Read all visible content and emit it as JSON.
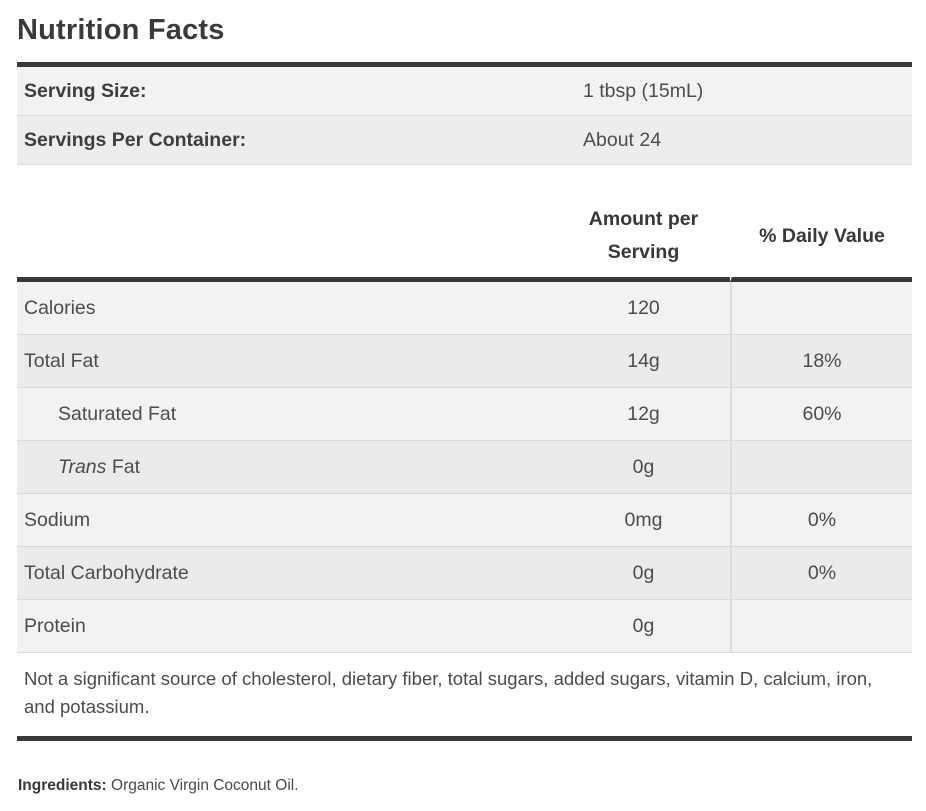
{
  "title": "Nutrition Facts",
  "serving_info": {
    "rows": [
      {
        "label": "Serving Size:",
        "value": "1 tbsp (15mL)"
      },
      {
        "label": "Servings Per Container:",
        "value": "About 24"
      }
    ]
  },
  "nutrition_table": {
    "columns": {
      "amount": "Amount per Serving",
      "daily_value": "% Daily Value"
    },
    "rows": [
      {
        "label": "Calories",
        "amount": "120",
        "daily_value": ""
      },
      {
        "label": "Total Fat",
        "amount": "14g",
        "daily_value": "18%"
      },
      {
        "label": "Saturated Fat",
        "amount": "12g",
        "daily_value": "60%"
      },
      {
        "label_italic": "Trans",
        "label_rest": " Fat",
        "amount": "0g",
        "daily_value": ""
      },
      {
        "label": "Sodium",
        "amount": "0mg",
        "daily_value": "0%"
      },
      {
        "label": "Total Carbohydrate",
        "amount": "0g",
        "daily_value": "0%"
      },
      {
        "label": "Protein",
        "amount": "0g",
        "daily_value": ""
      }
    ],
    "footnote": "Not a significant source of cholesterol, dietary fiber, total sugars, added sugars, vitamin D, calcium, iron, and potassium."
  },
  "ingredients": {
    "label": "Ingredients:",
    "value": " Organic Virgin Coconut Oil."
  },
  "colors": {
    "rule_dark": "#383838",
    "row_light": "#f2f2f2",
    "row_dark": "#ebebeb",
    "divider": "#d9d9d9",
    "text_primary": "#3a3a3a",
    "text_secondary": "#4c4c4c"
  }
}
